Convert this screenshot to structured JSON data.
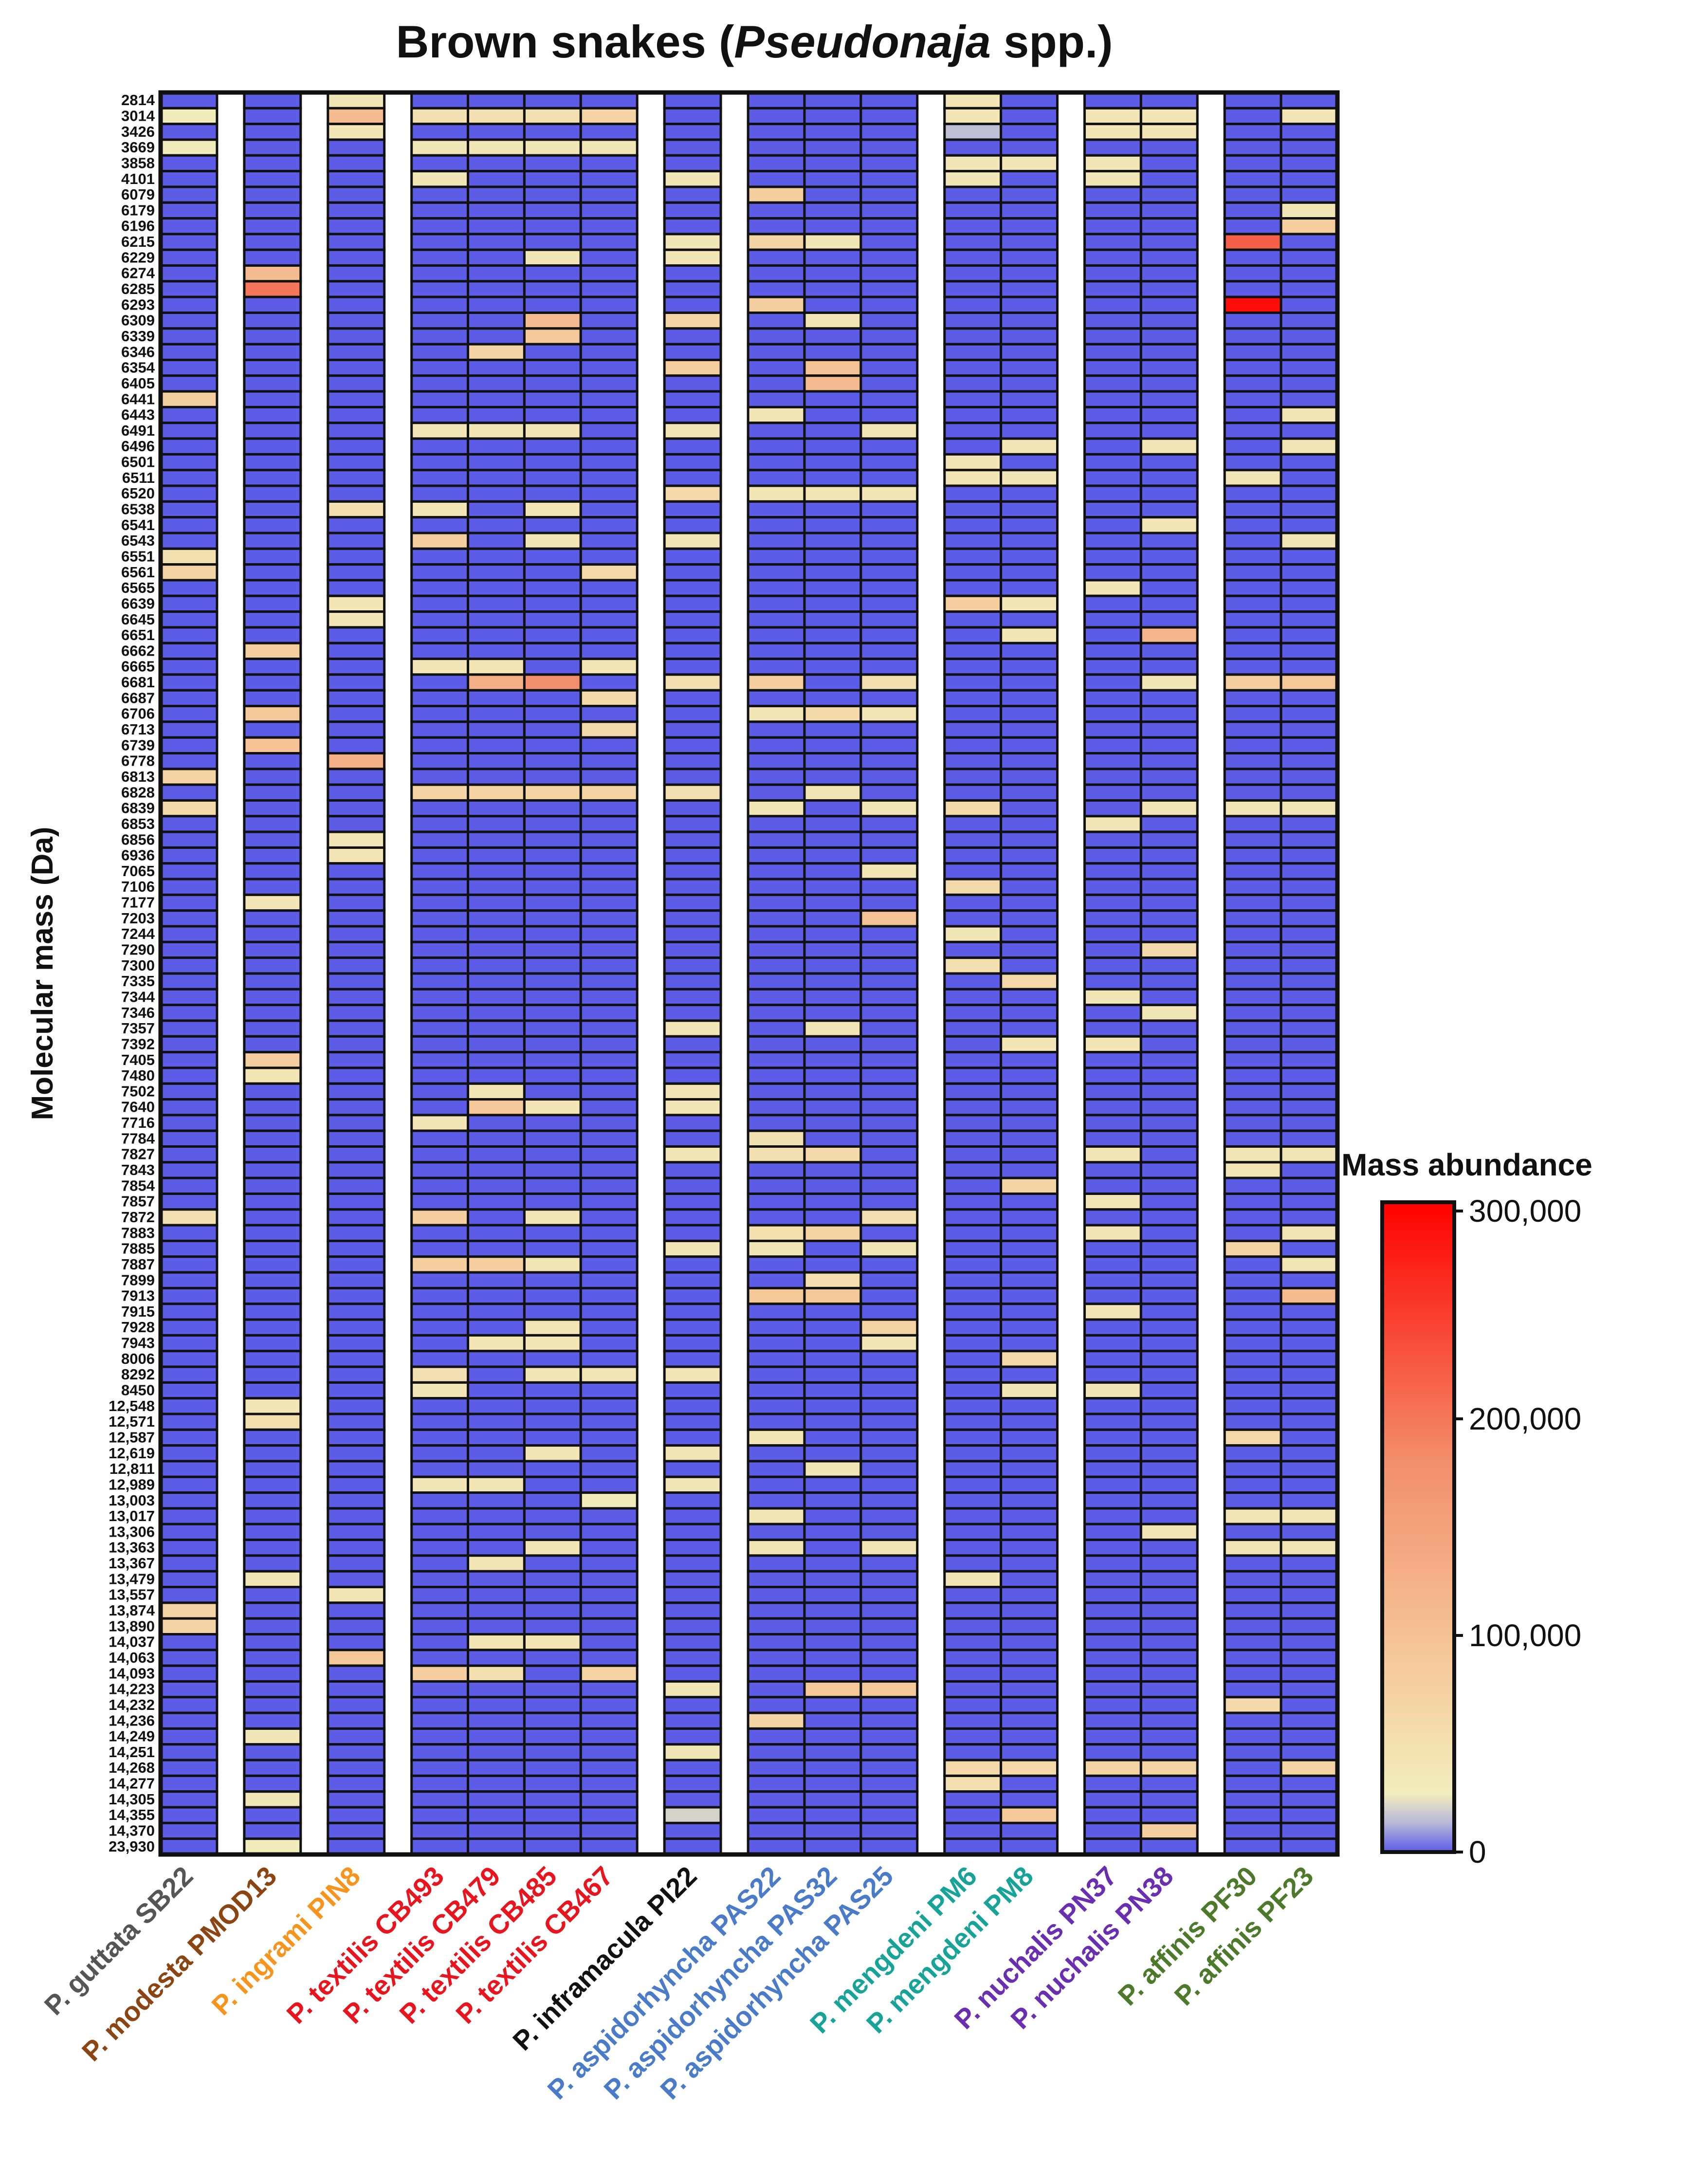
{
  "chart_data": {
    "type": "heatmap",
    "title_prefix": "Brown snakes (",
    "title_italic": "Pseudonaja",
    "title_suffix": " spp.)",
    "ylabel": "Molecular mass (Da)",
    "colorbar": {
      "title": "Mass abundance",
      "ticks": [
        "0",
        "100,000",
        "200,000",
        "300,000"
      ],
      "tick_values": [
        0,
        100000,
        200000,
        300000
      ],
      "range": [
        0,
        300000
      ],
      "colors": [
        "#5c5ce6",
        "#f2eebd",
        "#f5c89a",
        "#f28f6c",
        "#ff0000"
      ]
    },
    "rows": [
      "2814",
      "3014",
      "3426",
      "3669",
      "3858",
      "4101",
      "6079",
      "6179",
      "6196",
      "6215",
      "6229",
      "6274",
      "6285",
      "6293",
      "6309",
      "6339",
      "6346",
      "6354",
      "6405",
      "6441",
      "6443",
      "6491",
      "6496",
      "6501",
      "6511",
      "6520",
      "6538",
      "6541",
      "6543",
      "6551",
      "6561",
      "6565",
      "6639",
      "6645",
      "6651",
      "6662",
      "6665",
      "6681",
      "6687",
      "6706",
      "6713",
      "6739",
      "6778",
      "6813",
      "6828",
      "6839",
      "6853",
      "6856",
      "6936",
      "7065",
      "7106",
      "7177",
      "7203",
      "7244",
      "7290",
      "7300",
      "7335",
      "7344",
      "7346",
      "7357",
      "7392",
      "7405",
      "7480",
      "7502",
      "7640",
      "7716",
      "7784",
      "7827",
      "7843",
      "7854",
      "7857",
      "7872",
      "7883",
      "7885",
      "7887",
      "7899",
      "7913",
      "7915",
      "7928",
      "7943",
      "8006",
      "8292",
      "8450",
      "12,548",
      "12,571",
      "12,587",
      "12,619",
      "12,811",
      "12,989",
      "13,003",
      "13,017",
      "13,306",
      "13,363",
      "13,367",
      "13,479",
      "13,557",
      "13,874",
      "13,890",
      "14,037",
      "14,063",
      "14,093",
      "14,223",
      "14,232",
      "14,236",
      "14,249",
      "14,251",
      "14,268",
      "14,277",
      "14,305",
      "14,355",
      "14,370",
      "23,930"
    ],
    "columns": [
      {
        "species": "P. guttata",
        "specimen": "SB22",
        "color": "#555555"
      },
      {
        "species": "P. modesta",
        "specimen": "PMOD13",
        "color": "#8b4513"
      },
      {
        "species": "P. ingrami",
        "specimen": "PIN8",
        "color": "#f7941d"
      },
      {
        "species": "P. textilis",
        "specimen": "CB493",
        "color": "#e8141e"
      },
      {
        "species": "P. textilis",
        "specimen": "CB479",
        "color": "#e8141e"
      },
      {
        "species": "P. textilis",
        "specimen": "CB485",
        "color": "#e8141e"
      },
      {
        "species": "P. textilis",
        "specimen": "CB467",
        "color": "#e8141e"
      },
      {
        "species": "P. inframacula",
        "specimen": "PI22",
        "color": "#111111"
      },
      {
        "species": "P. aspidorhyncha",
        "specimen": "PAS22",
        "color": "#4a7bc8"
      },
      {
        "species": "P. aspidorhyncha",
        "specimen": "PAS32",
        "color": "#4a7bc8"
      },
      {
        "species": "P. aspidorhyncha",
        "specimen": "PAS25",
        "color": "#4a7bc8"
      },
      {
        "species": "P. mengdeni",
        "specimen": "PM6",
        "color": "#17a398"
      },
      {
        "species": "P. mengdeni",
        "specimen": "PM8",
        "color": "#17a398"
      },
      {
        "species": "P. nuchalis",
        "specimen": "PN37",
        "color": "#6a2fb0"
      },
      {
        "species": "P. nuchalis",
        "specimen": "PN38",
        "color": "#6a2fb0"
      },
      {
        "species": "P. affinis",
        "specimen": "PF30",
        "color": "#4c7a2a"
      },
      {
        "species": "P. affinis",
        "specimen": "PF23",
        "color": "#4c7a2a"
      }
    ],
    "groups": [
      [
        0
      ],
      [
        1
      ],
      [
        2
      ],
      [
        3,
        4,
        5,
        6
      ],
      [
        7
      ],
      [
        8,
        9,
        10
      ],
      [
        11,
        12
      ],
      [
        13,
        14
      ],
      [
        15,
        16
      ]
    ],
    "cells": [
      [
        0,
        1,
        30000
      ],
      [
        0,
        3,
        30000
      ],
      [
        0,
        19,
        80000
      ],
      [
        0,
        29,
        50000
      ],
      [
        0,
        30,
        70000
      ],
      [
        0,
        43,
        70000
      ],
      [
        0,
        45,
        60000
      ],
      [
        0,
        71,
        50000
      ],
      [
        0,
        96,
        70000
      ],
      [
        0,
        97,
        70000
      ],
      [
        1,
        11,
        110000
      ],
      [
        1,
        12,
        200000
      ],
      [
        1,
        35,
        80000
      ],
      [
        1,
        39,
        90000
      ],
      [
        1,
        41,
        100000
      ],
      [
        1,
        51,
        40000
      ],
      [
        1,
        61,
        80000
      ],
      [
        1,
        62,
        40000
      ],
      [
        1,
        83,
        40000
      ],
      [
        1,
        84,
        50000
      ],
      [
        1,
        94,
        40000
      ],
      [
        1,
        104,
        40000
      ],
      [
        1,
        108,
        40000
      ],
      [
        1,
        111,
        30000
      ],
      [
        2,
        0,
        40000
      ],
      [
        2,
        1,
        110000
      ],
      [
        2,
        2,
        40000
      ],
      [
        2,
        26,
        50000
      ],
      [
        2,
        32,
        40000
      ],
      [
        2,
        33,
        40000
      ],
      [
        2,
        42,
        130000
      ],
      [
        2,
        47,
        40000
      ],
      [
        2,
        48,
        40000
      ],
      [
        2,
        95,
        40000
      ],
      [
        2,
        99,
        90000
      ],
      [
        3,
        1,
        50000
      ],
      [
        3,
        3,
        40000
      ],
      [
        3,
        5,
        40000
      ],
      [
        3,
        21,
        40000
      ],
      [
        3,
        26,
        40000
      ],
      [
        3,
        28,
        80000
      ],
      [
        3,
        36,
        40000
      ],
      [
        3,
        44,
        70000
      ],
      [
        3,
        65,
        40000
      ],
      [
        3,
        71,
        80000
      ],
      [
        3,
        74,
        80000
      ],
      [
        3,
        81,
        50000
      ],
      [
        3,
        82,
        40000
      ],
      [
        3,
        88,
        40000
      ],
      [
        3,
        100,
        80000
      ],
      [
        4,
        1,
        50000
      ],
      [
        4,
        3,
        40000
      ],
      [
        4,
        16,
        70000
      ],
      [
        4,
        21,
        40000
      ],
      [
        4,
        36,
        40000
      ],
      [
        4,
        37,
        130000
      ],
      [
        4,
        44,
        70000
      ],
      [
        4,
        63,
        40000
      ],
      [
        4,
        64,
        90000
      ],
      [
        4,
        74,
        80000
      ],
      [
        4,
        79,
        40000
      ],
      [
        4,
        88,
        40000
      ],
      [
        4,
        93,
        40000
      ],
      [
        4,
        98,
        40000
      ],
      [
        4,
        100,
        50000
      ],
      [
        5,
        1,
        50000
      ],
      [
        5,
        3,
        40000
      ],
      [
        5,
        10,
        40000
      ],
      [
        5,
        14,
        110000
      ],
      [
        5,
        15,
        90000
      ],
      [
        5,
        21,
        40000
      ],
      [
        5,
        26,
        40000
      ],
      [
        5,
        28,
        40000
      ],
      [
        5,
        37,
        180000
      ],
      [
        5,
        44,
        70000
      ],
      [
        5,
        64,
        40000
      ],
      [
        5,
        71,
        40000
      ],
      [
        5,
        74,
        40000
      ],
      [
        5,
        78,
        40000
      ],
      [
        5,
        79,
        40000
      ],
      [
        5,
        81,
        40000
      ],
      [
        5,
        86,
        40000
      ],
      [
        5,
        92,
        40000
      ],
      [
        5,
        98,
        40000
      ],
      [
        6,
        1,
        70000
      ],
      [
        6,
        3,
        40000
      ],
      [
        6,
        30,
        60000
      ],
      [
        6,
        36,
        40000
      ],
      [
        6,
        38,
        60000
      ],
      [
        6,
        40,
        60000
      ],
      [
        6,
        44,
        70000
      ],
      [
        6,
        81,
        40000
      ],
      [
        6,
        89,
        30000
      ],
      [
        6,
        100,
        70000
      ],
      [
        7,
        5,
        40000
      ],
      [
        7,
        9,
        40000
      ],
      [
        7,
        10,
        40000
      ],
      [
        7,
        14,
        70000
      ],
      [
        7,
        17,
        80000
      ],
      [
        7,
        21,
        40000
      ],
      [
        7,
        25,
        60000
      ],
      [
        7,
        28,
        40000
      ],
      [
        7,
        37,
        50000
      ],
      [
        7,
        44,
        50000
      ],
      [
        7,
        59,
        40000
      ],
      [
        7,
        63,
        40000
      ],
      [
        7,
        64,
        40000
      ],
      [
        7,
        67,
        40000
      ],
      [
        7,
        73,
        40000
      ],
      [
        7,
        81,
        40000
      ],
      [
        7,
        86,
        40000
      ],
      [
        7,
        88,
        40000
      ],
      [
        7,
        101,
        40000
      ],
      [
        7,
        105,
        40000
      ],
      [
        7,
        109,
        20000
      ],
      [
        8,
        6,
        80000
      ],
      [
        8,
        9,
        70000
      ],
      [
        8,
        13,
        80000
      ],
      [
        8,
        20,
        40000
      ],
      [
        8,
        25,
        40000
      ],
      [
        8,
        37,
        80000
      ],
      [
        8,
        39,
        40000
      ],
      [
        8,
        45,
        40000
      ],
      [
        8,
        66,
        50000
      ],
      [
        8,
        67,
        50000
      ],
      [
        8,
        72,
        50000
      ],
      [
        8,
        73,
        40000
      ],
      [
        8,
        76,
        90000
      ],
      [
        8,
        85,
        40000
      ],
      [
        8,
        90,
        40000
      ],
      [
        8,
        92,
        40000
      ],
      [
        8,
        103,
        70000
      ],
      [
        9,
        9,
        40000
      ],
      [
        9,
        14,
        40000
      ],
      [
        9,
        17,
        100000
      ],
      [
        9,
        18,
        110000
      ],
      [
        9,
        25,
        40000
      ],
      [
        9,
        39,
        60000
      ],
      [
        9,
        44,
        40000
      ],
      [
        9,
        59,
        40000
      ],
      [
        9,
        67,
        60000
      ],
      [
        9,
        72,
        70000
      ],
      [
        9,
        75,
        50000
      ],
      [
        9,
        76,
        90000
      ],
      [
        9,
        87,
        40000
      ],
      [
        9,
        101,
        90000
      ],
      [
        10,
        21,
        40000
      ],
      [
        10,
        25,
        40000
      ],
      [
        10,
        37,
        50000
      ],
      [
        10,
        39,
        40000
      ],
      [
        10,
        45,
        40000
      ],
      [
        10,
        49,
        40000
      ],
      [
        10,
        52,
        100000
      ],
      [
        10,
        71,
        50000
      ],
      [
        10,
        73,
        40000
      ],
      [
        10,
        78,
        70000
      ],
      [
        10,
        79,
        40000
      ],
      [
        10,
        92,
        40000
      ],
      [
        10,
        101,
        90000
      ],
      [
        11,
        0,
        40000
      ],
      [
        11,
        1,
        40000
      ],
      [
        11,
        2,
        15000
      ],
      [
        11,
        4,
        40000
      ],
      [
        11,
        5,
        40000
      ],
      [
        11,
        23,
        40000
      ],
      [
        11,
        24,
        40000
      ],
      [
        11,
        32,
        80000
      ],
      [
        11,
        45,
        60000
      ],
      [
        11,
        50,
        60000
      ],
      [
        11,
        53,
        40000
      ],
      [
        11,
        55,
        50000
      ],
      [
        11,
        94,
        40000
      ],
      [
        11,
        106,
        60000
      ],
      [
        11,
        107,
        50000
      ],
      [
        12,
        4,
        40000
      ],
      [
        12,
        22,
        40000
      ],
      [
        12,
        24,
        40000
      ],
      [
        12,
        32,
        40000
      ],
      [
        12,
        34,
        40000
      ],
      [
        12,
        56,
        60000
      ],
      [
        12,
        60,
        40000
      ],
      [
        12,
        69,
        70000
      ],
      [
        12,
        80,
        60000
      ],
      [
        12,
        82,
        40000
      ],
      [
        12,
        106,
        60000
      ],
      [
        12,
        109,
        90000
      ],
      [
        13,
        1,
        40000
      ],
      [
        13,
        2,
        40000
      ],
      [
        13,
        4,
        40000
      ],
      [
        13,
        5,
        40000
      ],
      [
        13,
        31,
        40000
      ],
      [
        13,
        46,
        40000
      ],
      [
        13,
        57,
        40000
      ],
      [
        13,
        60,
        40000
      ],
      [
        13,
        67,
        40000
      ],
      [
        13,
        70,
        40000
      ],
      [
        13,
        72,
        40000
      ],
      [
        13,
        77,
        40000
      ],
      [
        13,
        82,
        40000
      ],
      [
        13,
        106,
        70000
      ],
      [
        14,
        1,
        40000
      ],
      [
        14,
        2,
        40000
      ],
      [
        14,
        22,
        40000
      ],
      [
        14,
        27,
        40000
      ],
      [
        14,
        34,
        120000
      ],
      [
        14,
        37,
        40000
      ],
      [
        14,
        45,
        40000
      ],
      [
        14,
        54,
        60000
      ],
      [
        14,
        58,
        40000
      ],
      [
        14,
        91,
        40000
      ],
      [
        14,
        106,
        70000
      ],
      [
        14,
        110,
        80000
      ],
      [
        15,
        9,
        220000
      ],
      [
        15,
        13,
        290000
      ],
      [
        15,
        24,
        40000
      ],
      [
        15,
        37,
        80000
      ],
      [
        15,
        45,
        40000
      ],
      [
        15,
        67,
        40000
      ],
      [
        15,
        68,
        40000
      ],
      [
        15,
        73,
        70000
      ],
      [
        15,
        85,
        60000
      ],
      [
        15,
        90,
        40000
      ],
      [
        15,
        92,
        40000
      ],
      [
        15,
        102,
        60000
      ],
      [
        16,
        1,
        40000
      ],
      [
        16,
        7,
        40000
      ],
      [
        16,
        8,
        80000
      ],
      [
        16,
        20,
        40000
      ],
      [
        16,
        22,
        40000
      ],
      [
        16,
        28,
        40000
      ],
      [
        16,
        37,
        90000
      ],
      [
        16,
        45,
        40000
      ],
      [
        16,
        67,
        40000
      ],
      [
        16,
        72,
        40000
      ],
      [
        16,
        74,
        40000
      ],
      [
        16,
        76,
        110000
      ],
      [
        16,
        90,
        40000
      ],
      [
        16,
        92,
        40000
      ],
      [
        16,
        106,
        70000
      ]
    ]
  }
}
